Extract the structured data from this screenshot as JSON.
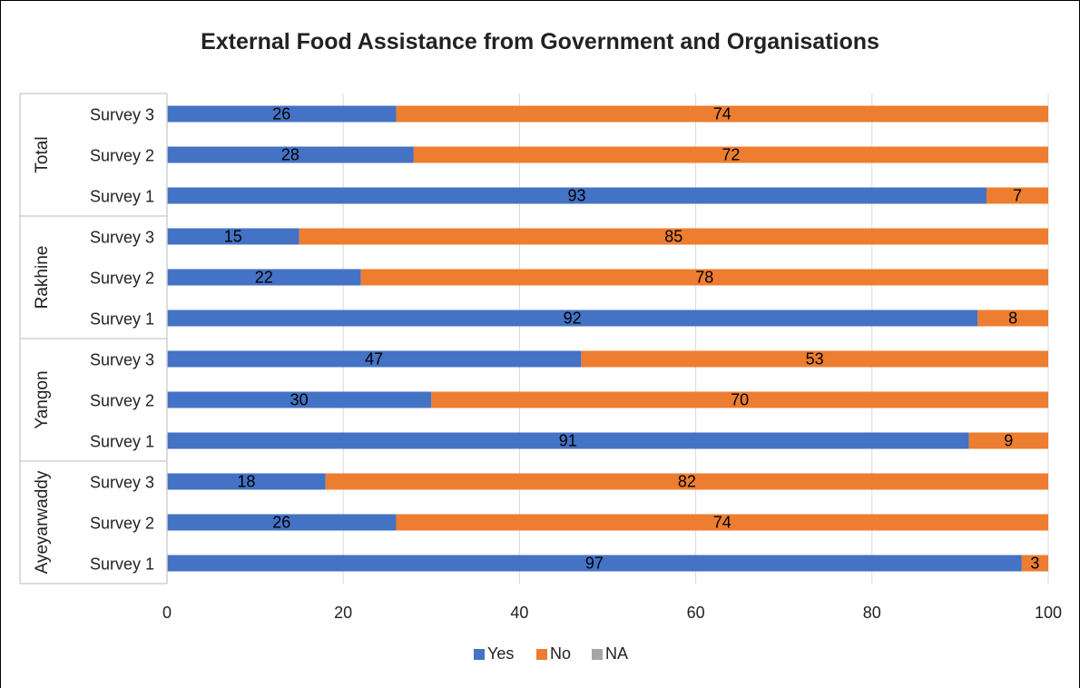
{
  "chart_data": {
    "type": "bar",
    "orientation": "horizontal",
    "stacked": true,
    "title": "External Food Assistance from Government and Organisations",
    "groups": [
      {
        "name": "Total",
        "categories": [
          "Survey 3",
          "Survey 2",
          "Survey 1"
        ],
        "yes": [
          26,
          28,
          93
        ],
        "no": [
          74,
          72,
          7
        ]
      },
      {
        "name": "Rakhine",
        "categories": [
          "Survey 3",
          "Survey 2",
          "Survey 1"
        ],
        "yes": [
          15,
          22,
          92
        ],
        "no": [
          85,
          78,
          8
        ]
      },
      {
        "name": "Yangon",
        "categories": [
          "Survey 3",
          "Survey 2",
          "Survey 1"
        ],
        "yes": [
          47,
          30,
          91
        ],
        "no": [
          53,
          70,
          9
        ]
      },
      {
        "name": "Ayeyarwaddy",
        "categories": [
          "Survey 3",
          "Survey 2",
          "Survey 1"
        ],
        "yes": [
          18,
          26,
          97
        ],
        "no": [
          82,
          74,
          3
        ]
      }
    ],
    "series": [
      {
        "name": "Yes",
        "color": "#4472C4"
      },
      {
        "name": "No",
        "color": "#ED7D31"
      },
      {
        "name": "NA",
        "color": "#A5A5A5"
      }
    ],
    "xlim": [
      0,
      100
    ],
    "xticks": [
      0,
      20,
      40,
      60,
      80,
      100
    ],
    "grid": true,
    "legend_position": "bottom"
  }
}
